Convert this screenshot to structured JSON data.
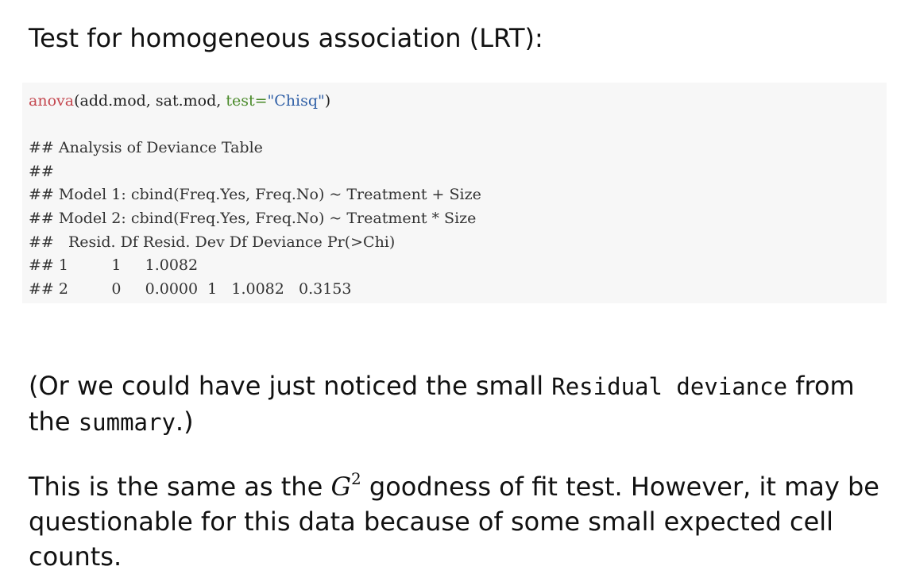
{
  "heading": "Test for homogeneous association (LRT):",
  "code": {
    "fn": "anova",
    "open": "(add.mod, sat.mod, ",
    "arg": "test=",
    "str": "\"Chisq\"",
    "close": ")"
  },
  "output": [
    "## Analysis of Deviance Table",
    "##",
    "## Model 1: cbind(Freq.Yes, Freq.No) ~ Treatment + Size",
    "## Model 2: cbind(Freq.Yes, Freq.No) ~ Treatment * Size",
    "##   Resid. Df Resid. Dev Df Deviance Pr(>Chi)",
    "## 1         1     1.0082",
    "## 2         0     0.0000  1   1.0082   0.3153"
  ],
  "para1": {
    "before": "(Or we could have just noticed the small ",
    "code1": "Residual deviance",
    "middle": " from the ",
    "code2": "summary",
    "after": ".)"
  },
  "para2": {
    "before": "This is the same as the ",
    "math_base": "G",
    "math_sup": "2",
    "after": " goodness of fit test. However, it may be questionable for this data because of some small expected cell counts."
  }
}
